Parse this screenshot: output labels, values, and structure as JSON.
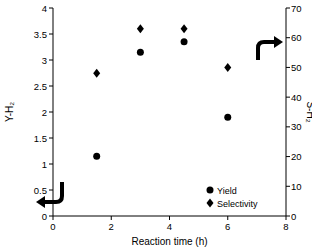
{
  "chart_data": {
    "type": "scatter",
    "x_label": "Reaction time (h)",
    "y_label": "Y-H₂",
    "y2_label": "S-H₂",
    "x": [
      1.5,
      3,
      4.5,
      6
    ],
    "series": [
      {
        "name": "Yield",
        "color": "#000000",
        "marker": "circle",
        "values": [
          1.15,
          3.15,
          3.35,
          1.9
        ]
      },
      {
        "name": "Selectivity",
        "color": "#000000",
        "marker": "diamond",
        "axis": "y2",
        "values": [
          48,
          63,
          63,
          50
        ]
      }
    ],
    "xlim": [
      0,
      8
    ],
    "xticks": [
      0,
      2,
      4,
      6,
      8
    ],
    "ylim": [
      0,
      4
    ],
    "yticks": [
      0,
      0.5,
      1,
      1.5,
      2,
      2.5,
      3,
      3.5,
      4
    ],
    "y2lim": [
      0,
      70
    ],
    "y2ticks": [
      0,
      10,
      20,
      30,
      40,
      50,
      60,
      70
    ],
    "legend": "bottom-right",
    "grid": false
  }
}
